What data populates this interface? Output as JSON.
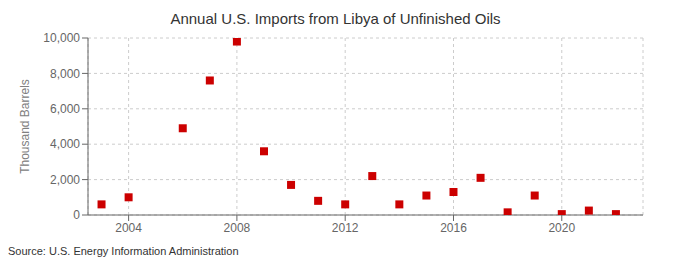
{
  "chart_data": {
    "type": "scatter",
    "title": "Annual U.S. Imports from Libya of Unfinished Oils",
    "ylabel": "Thousand Barrels",
    "annotations": [
      "Source: U.S. Energy Information Administration"
    ],
    "x": [
      2003,
      2004,
      2006,
      2007,
      2008,
      2009,
      2010,
      2011,
      2012,
      2013,
      2014,
      2015,
      2016,
      2017,
      2018,
      2019,
      2020,
      2021,
      2022
    ],
    "values": [
      600,
      1000,
      4900,
      7600,
      9800,
      3600,
      1700,
      800,
      600,
      2200,
      600,
      1100,
      1300,
      2100,
      150,
      1100,
      50,
      250,
      50
    ],
    "color": "#cc0000",
    "marker": "square",
    "xlim": [
      2002.5,
      2023
    ],
    "xticks": [
      2004,
      2008,
      2012,
      2016,
      2020
    ],
    "ylim": [
      0,
      10000
    ],
    "yticks": [
      0,
      {
        "value": 2000,
        "label": "2,000"
      },
      {
        "value": 4000,
        "label": "4,000"
      },
      {
        "value": 6000,
        "label": "6,000"
      },
      {
        "value": 8000,
        "label": "8,000"
      },
      {
        "value": 10000,
        "label": "10,000"
      }
    ],
    "grid": true
  }
}
